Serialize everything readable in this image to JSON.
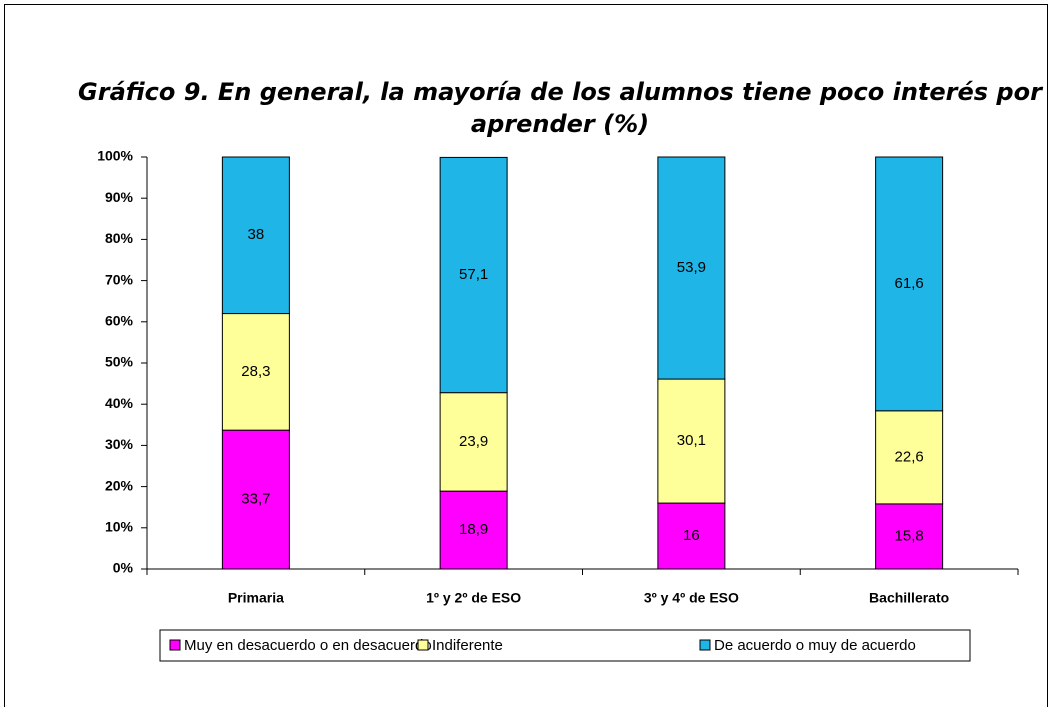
{
  "chart_data": {
    "type": "stacked_bar",
    "title": "Gráfico 9. En general, la mayoría de los alumnos tiene poco interés por aprender (%)",
    "categories": [
      "Primaria",
      "1º y 2º de ESO",
      "3º y 4º de ESO",
      "Bachillerato"
    ],
    "series": [
      {
        "name": "Muy en desacuerdo o en desacuerdo",
        "color": "#ff00ff",
        "values": [
          33.7,
          18.9,
          16,
          15.8
        ],
        "value_labels": [
          "33,7",
          "18,9",
          "16",
          "15,8"
        ]
      },
      {
        "name": "Indiferente",
        "color": "#ffff99",
        "values": [
          28.3,
          23.9,
          30.1,
          22.6
        ],
        "value_labels": [
          "28,3",
          "23,9",
          "30,1",
          "22,6"
        ]
      },
      {
        "name": "De acuerdo o muy de acuerdo",
        "color": "#1fb5e6",
        "values": [
          38,
          57.1,
          53.9,
          61.6
        ],
        "value_labels": [
          "38",
          "57,1",
          "53,9",
          "61,6"
        ]
      }
    ],
    "ylim": [
      0,
      100
    ],
    "yticks": [
      {
        "value": 0,
        "label": "0%"
      },
      {
        "value": 10,
        "label": "10%"
      },
      {
        "value": 20,
        "label": "20%"
      },
      {
        "value": 30,
        "label": "30%"
      },
      {
        "value": 40,
        "label": "40%"
      },
      {
        "value": 50,
        "label": "50%"
      },
      {
        "value": 60,
        "label": "60%"
      },
      {
        "value": 70,
        "label": "70%"
      },
      {
        "value": 80,
        "label": "80%"
      },
      {
        "value": 90,
        "label": "90%"
      },
      {
        "value": 100,
        "label": "100%"
      }
    ],
    "grid": false,
    "legend": "bottom"
  }
}
